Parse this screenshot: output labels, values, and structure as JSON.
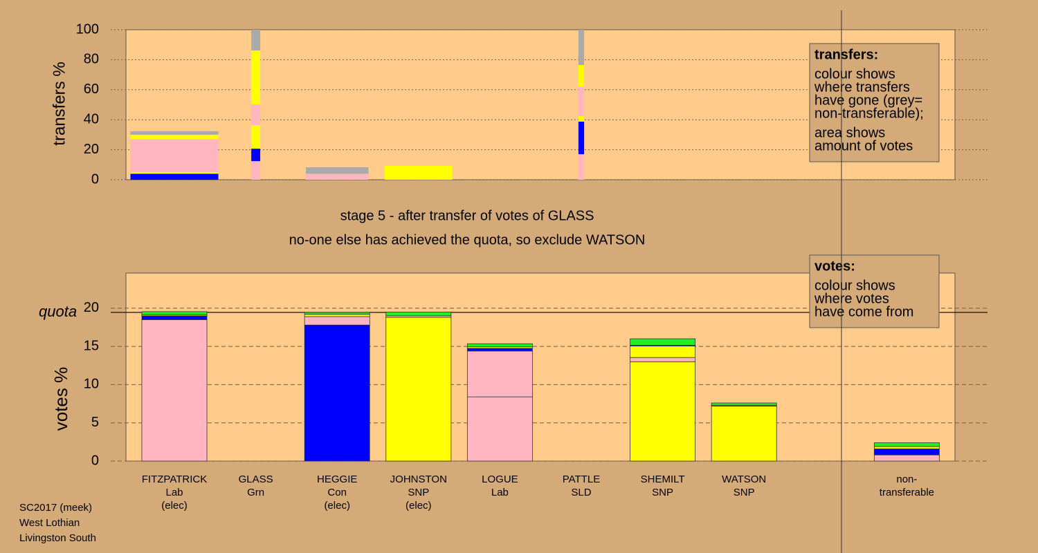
{
  "chart_data": [
    {
      "type": "bar",
      "stacked": true,
      "ylabel": "transfers %",
      "ylim": [
        0,
        100
      ],
      "yticks": [
        0,
        20,
        40,
        60,
        80,
        100
      ],
      "grid": true,
      "widths": [
        1.08,
        0.11,
        0.77,
        0.83,
        null,
        0.07,
        null,
        null
      ],
      "stacks": [
        [
          {
            "color": "#0000ff",
            "value": 4
          },
          {
            "color": "#ffff00",
            "value": 1
          },
          {
            "color": "#ffb6c1",
            "value": 22
          },
          {
            "color": "#ffff00",
            "value": 3
          },
          {
            "color": "#aaaaaa",
            "value": 2.3
          }
        ],
        [
          {
            "color": "#ffb6c1",
            "value": 12.4
          },
          {
            "color": "#0000ff",
            "value": 8.3
          },
          {
            "color": "#ffff00",
            "value": 15.7
          },
          {
            "color": "#ffb6c1",
            "value": 13.8
          },
          {
            "color": "#ffff00",
            "value": 36
          },
          {
            "color": "#aaaaaa",
            "value": 13.8
          }
        ],
        [
          {
            "color": "#ffb6c1",
            "value": 4
          },
          {
            "color": "#aaaaaa",
            "value": 4.3
          }
        ],
        [
          {
            "color": "#ffff00",
            "value": 9.2
          }
        ],
        [],
        [
          {
            "color": "#ffb6c1",
            "value": 17
          },
          {
            "color": "#0000ff",
            "value": 21.7
          },
          {
            "color": "#ffff00",
            "value": 3.7
          },
          {
            "color": "#ffb6c1",
            "value": 19.4
          },
          {
            "color": "#ffff00",
            "value": 14.7
          },
          {
            "color": "#aaaaaa",
            "value": 23.5
          }
        ],
        [],
        []
      ],
      "legend": {
        "title": "transfers:",
        "lines": [
          [
            "colour shows",
            "where transfers",
            "have gone (grey=",
            "non-transferable);"
          ],
          [
            "area shows",
            "amount of votes"
          ]
        ]
      }
    },
    {
      "type": "bar",
      "stacked": true,
      "ylabel": "votes %",
      "ylim": [
        0,
        24.6
      ],
      "yticks": [
        0,
        5,
        10,
        15,
        20
      ],
      "grid": true,
      "quota": {
        "value": 19.45,
        "label": "quota"
      },
      "categories": [
        [
          "FITZPATRICK",
          "Lab",
          "(elec)"
        ],
        [
          "GLASS",
          "Grn"
        ],
        [
          "HEGGIE",
          "Con",
          "(elec)"
        ],
        [
          "JOHNSTON",
          "SNP",
          "(elec)"
        ],
        [
          "LOGUE",
          "Lab"
        ],
        [
          "PATTLE",
          "SLD"
        ],
        [
          "SHEMILT",
          "SNP"
        ],
        [
          "WATSON",
          "SNP"
        ],
        [
          "non-",
          "transferable"
        ]
      ],
      "stacks": [
        [
          {
            "color": "#ffb6c1",
            "value": 18.5
          },
          {
            "color": "#0000ff",
            "value": 0.5
          },
          {
            "color": "#ffff00",
            "value": 0.15
          },
          {
            "color": "#22ee22",
            "value": 0.4
          }
        ],
        [
          {
            "color": "#22ee22",
            "value": 0
          }
        ],
        [
          {
            "color": "#0000ff",
            "value": 17.8
          },
          {
            "color": "#ffb6c1",
            "value": 1.1
          },
          {
            "color": "#ffff00",
            "value": 0.3
          },
          {
            "color": "#22ee22",
            "value": 0.25
          }
        ],
        [
          {
            "color": "#ffff00",
            "value": 18.8
          },
          {
            "color": "#ffb6c1",
            "value": 0.2
          },
          {
            "color": "#22ee22",
            "value": 0.5
          }
        ],
        [
          {
            "color": "#ffb6c1",
            "value": 8.4
          },
          {
            "color": "#ffb6c1",
            "value": 6.0
          },
          {
            "color": "#0000ff",
            "value": 0.35
          },
          {
            "color": "#ffff00",
            "value": 0.2
          },
          {
            "color": "#22ee22",
            "value": 0.4
          }
        ],
        [
          {
            "color": "#ffb6c1",
            "value": 0
          }
        ],
        [
          {
            "color": "#ffff00",
            "value": 13.0
          },
          {
            "color": "#ffb6c1",
            "value": 0.55
          },
          {
            "color": "#ffff00",
            "value": 1.5
          },
          {
            "color": "#0000ff",
            "value": 0.1
          },
          {
            "color": "#22ee22",
            "value": 0.85
          }
        ],
        [
          {
            "color": "#ffff00",
            "value": 7.2
          },
          {
            "color": "#ffb6c1",
            "value": 0.1
          },
          {
            "color": "#22ee22",
            "value": 0.3
          }
        ],
        [
          {
            "color": "#ffb6c1",
            "value": 0.8
          },
          {
            "color": "#0000ff",
            "value": 0.8
          },
          {
            "color": "#ffff00",
            "value": 0.3
          },
          {
            "color": "#22ee22",
            "value": 0.5
          }
        ]
      ],
      "legend": {
        "title": "votes:",
        "lines": [
          [
            "colour shows",
            "where votes",
            "have come from"
          ]
        ]
      }
    }
  ],
  "stage": "stage 5 - after transfer of votes of GLASS",
  "decision": "no-one else has achieved the quota, so exclude WATSON",
  "footer": [
    "SC2017 (meek)",
    "West Lothian",
    "Livingston South"
  ]
}
